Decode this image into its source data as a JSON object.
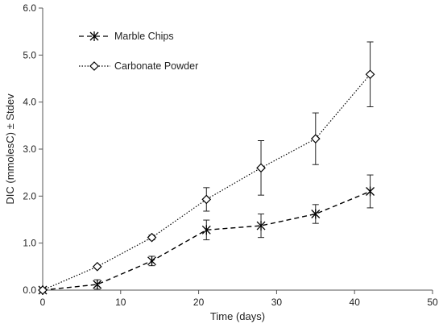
{
  "chart_data": {
    "type": "line",
    "title": "",
    "xlabel": "Time (days)",
    "ylabel": "DIC (mmolesC) ± Stdev",
    "xlim": [
      0,
      50
    ],
    "ylim": [
      0,
      6
    ],
    "x_ticks": [
      0,
      10,
      20,
      30,
      40,
      50
    ],
    "x_tick_labels": [
      "0",
      "10",
      "20",
      "30",
      "40",
      "50"
    ],
    "y_ticks": [
      0,
      1,
      2,
      3,
      4,
      5,
      6
    ],
    "y_tick_labels": [
      "0.0",
      "1.0",
      "2.0",
      "3.0",
      "4.0",
      "5.0",
      "6.0"
    ],
    "grid": false,
    "legend_position": "top-left",
    "series": [
      {
        "name": "Marble Chips",
        "line_style": "dashed",
        "marker": "asterisk",
        "color": "#000000",
        "x": [
          0,
          7,
          14,
          21,
          28,
          35,
          42
        ],
        "y": [
          0.0,
          0.12,
          0.62,
          1.28,
          1.37,
          1.62,
          2.1
        ],
        "error": [
          0.0,
          0.1,
          0.1,
          0.21,
          0.25,
          0.2,
          0.35
        ]
      },
      {
        "name": "Carbonate Powder",
        "line_style": "dotted",
        "marker": "diamond",
        "color": "#000000",
        "x": [
          0,
          7,
          14,
          21,
          28,
          35,
          42
        ],
        "y": [
          0.0,
          0.5,
          1.12,
          1.93,
          2.6,
          3.22,
          4.59
        ],
        "error": [
          0.0,
          0.0,
          0.05,
          0.25,
          0.58,
          0.55,
          0.69
        ]
      }
    ]
  }
}
